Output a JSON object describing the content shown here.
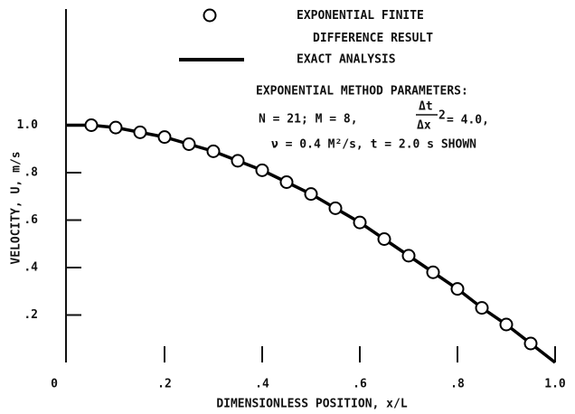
{
  "chart_data": {
    "type": "line",
    "xlabel": "DIMENSIONLESS POSITION, x/L",
    "ylabel": "VELOCITY, U, m/s",
    "xlim": [
      0,
      1
    ],
    "ylim": [
      0,
      1.5
    ],
    "xticks": [
      0,
      {
        "value": 0.2,
        "label": ".2"
      },
      {
        "value": 0.4,
        "label": ".4"
      },
      {
        "value": 0.6,
        "label": ".6"
      },
      {
        "value": 0.8,
        "label": ".8"
      },
      {
        "value": 1,
        "label": "1.0"
      }
    ],
    "yticks": [
      {
        "value": 0.2,
        "label": ".2"
      },
      {
        "value": 0.4,
        "label": ".4"
      },
      {
        "value": 0.6,
        "label": ".6"
      },
      {
        "value": 0.8,
        "label": ".8"
      },
      {
        "value": 1,
        "label": "1.0"
      }
    ],
    "series": [
      {
        "name": "EXPONENTIAL FINITE DIFFERENCE RESULT",
        "marker": "circle",
        "color": "#000000",
        "x": [
          0.05,
          0.1,
          0.15,
          0.2,
          0.25,
          0.3,
          0.35,
          0.4,
          0.45,
          0.5,
          0.55,
          0.6,
          0.65,
          0.7,
          0.75,
          0.8,
          0.85,
          0.9,
          0.95
        ],
        "values": [
          1.0,
          0.99,
          0.97,
          0.95,
          0.92,
          0.89,
          0.85,
          0.81,
          0.76,
          0.71,
          0.65,
          0.59,
          0.52,
          0.45,
          0.38,
          0.31,
          0.23,
          0.16,
          0.08
        ]
      },
      {
        "name": "EXACT ANALYSIS",
        "marker": "line",
        "color": "#000000",
        "x": [
          0,
          0.05,
          0.1,
          0.15,
          0.2,
          0.25,
          0.3,
          0.35,
          0.4,
          0.45,
          0.5,
          0.55,
          0.6,
          0.65,
          0.7,
          0.75,
          0.8,
          0.85,
          0.9,
          0.95,
          1
        ],
        "values": [
          1.0,
          1.0,
          0.99,
          0.97,
          0.95,
          0.92,
          0.89,
          0.85,
          0.81,
          0.76,
          0.71,
          0.65,
          0.59,
          0.52,
          0.45,
          0.38,
          0.31,
          0.23,
          0.16,
          0.08,
          0
        ]
      }
    ],
    "annotation": {
      "heading": "EXPONENTIAL METHOD PARAMETERS:",
      "line1": {
        "prefix": "N = 21; M = 8,",
        "numerator": "Δt",
        "denominator": "Δx",
        "exponent": "2",
        "suffix": "= 4.0,"
      },
      "line2": "ν = 0.4 M²/s,  t = 2.0 s SHOWN"
    }
  }
}
